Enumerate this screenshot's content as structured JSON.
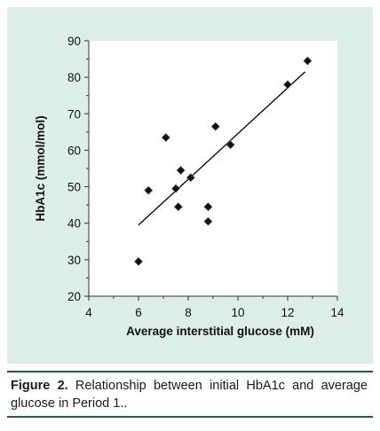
{
  "colors": {
    "panel_background": "#ddeee9",
    "plot_background": "#ffffff",
    "marker": "#111111",
    "trendline": "#000000",
    "caption_rule": "#1d5c55"
  },
  "chart_data": {
    "type": "scatter",
    "xlabel": "Average interstitial glucose (mM)",
    "ylabel": "HbA1c (mmol/mol)",
    "xlim": [
      4,
      14
    ],
    "ylim": [
      20,
      90
    ],
    "x_ticks": [
      4,
      6,
      8,
      10,
      12,
      14
    ],
    "y_ticks": [
      20,
      30,
      40,
      50,
      60,
      70,
      80,
      90
    ],
    "grid": false,
    "legend": "none",
    "marker": "diamond",
    "points": [
      {
        "x": 6.0,
        "y": 29.5
      },
      {
        "x": 6.4,
        "y": 49
      },
      {
        "x": 7.1,
        "y": 63.5
      },
      {
        "x": 7.5,
        "y": 49.5
      },
      {
        "x": 7.6,
        "y": 44.5
      },
      {
        "x": 7.7,
        "y": 54.5
      },
      {
        "x": 8.1,
        "y": 52.5
      },
      {
        "x": 8.8,
        "y": 44.5
      },
      {
        "x": 8.8,
        "y": 40.5
      },
      {
        "x": 9.1,
        "y": 66.5
      },
      {
        "x": 9.7,
        "y": 61.5
      },
      {
        "x": 12.0,
        "y": 78
      },
      {
        "x": 12.8,
        "y": 84.5
      }
    ],
    "trendline": {
      "type": "linear",
      "from": {
        "x": 6.0,
        "y": 39.5
      },
      "to": {
        "x": 12.7,
        "y": 81.5
      }
    }
  },
  "caption": {
    "label": "Figure 2.",
    "text": " Relationship between initial HbA1c and average glucose in Period 1.."
  }
}
